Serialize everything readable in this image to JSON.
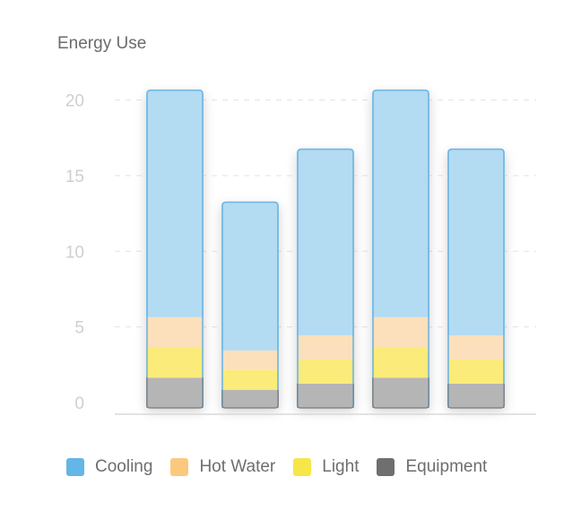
{
  "title": "Energy Use",
  "chart_data": {
    "type": "bar",
    "stacked": true,
    "categories": [
      "",
      "",
      "",
      "",
      ""
    ],
    "series": [
      {
        "name": "Equipment",
        "values": [
          2.0,
          1.2,
          1.6,
          2.0,
          1.6
        ],
        "color": "#b5b5b5",
        "legend_color": "#6f6f6f"
      },
      {
        "name": "Light",
        "values": [
          2.0,
          1.3,
          1.6,
          2.0,
          1.6
        ],
        "color": "#faeb7a",
        "legend_color": "#f7e64a"
      },
      {
        "name": "Hot Water",
        "values": [
          2.0,
          1.3,
          1.6,
          2.0,
          1.6
        ],
        "color": "#fbe0bb",
        "legend_color": "#fbc97e"
      },
      {
        "name": "Cooling",
        "values": [
          15.0,
          9.8,
          12.3,
          15.0,
          12.3
        ],
        "color": "#b3dbf2",
        "legend_color": "#64b6e6"
      }
    ],
    "yticks": [
      0,
      5,
      10,
      15,
      20
    ],
    "ylim": [
      0,
      21
    ],
    "grid": true,
    "legend_position": "bottom"
  }
}
